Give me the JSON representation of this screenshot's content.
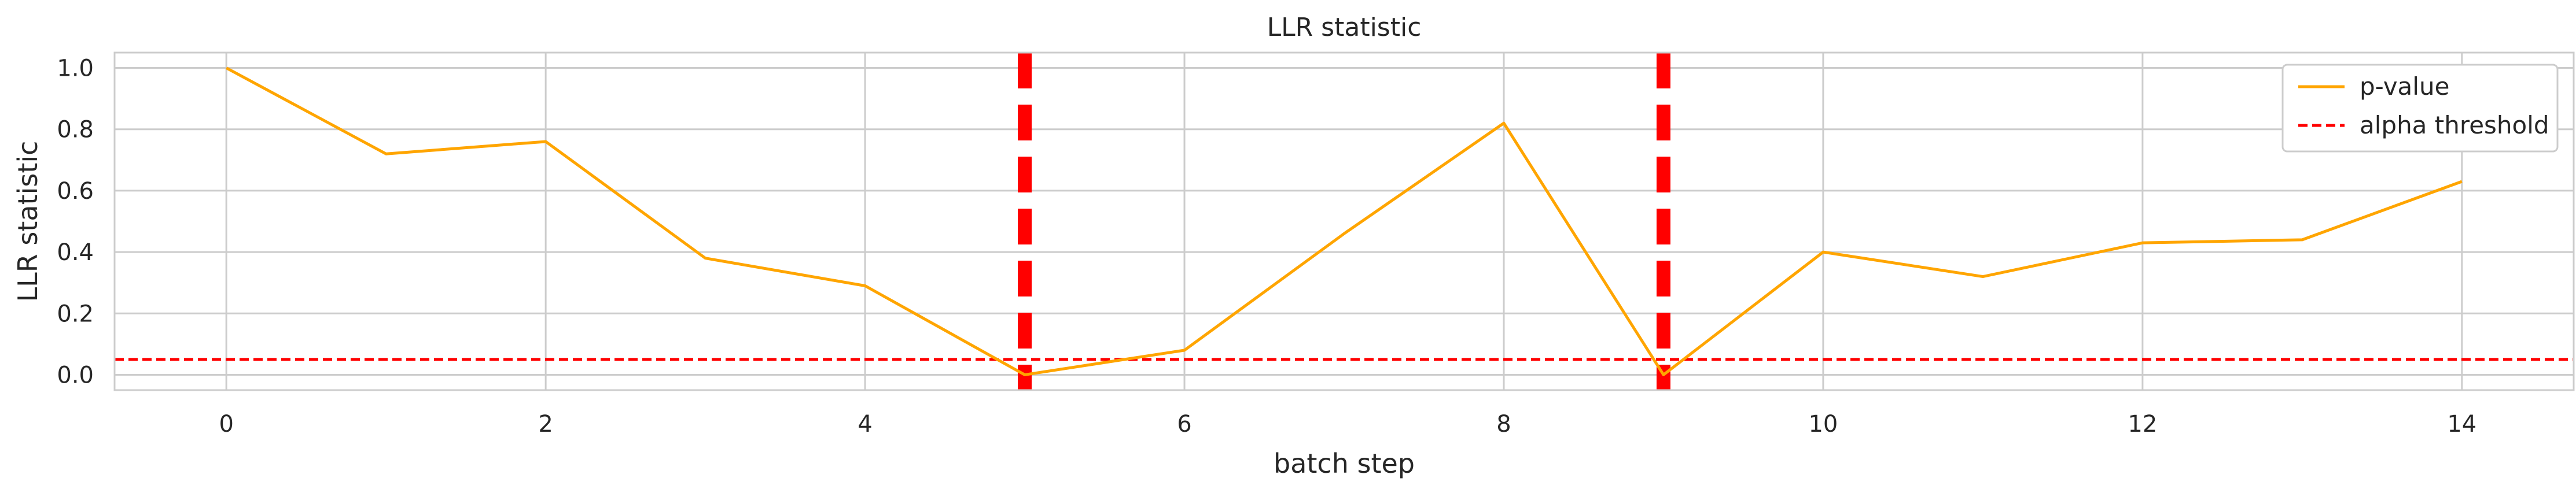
{
  "chart_data": {
    "type": "line",
    "title": "LLR statistic",
    "xlabel": "batch step",
    "ylabel": "LLR statistic",
    "xlim": [
      -0.7,
      14.7
    ],
    "ylim": [
      -0.05,
      1.05
    ],
    "x_ticks": [
      "0",
      "2",
      "4",
      "6",
      "8",
      "10",
      "12",
      "14"
    ],
    "y_ticks": [
      "0.0",
      "0.2",
      "0.4",
      "0.6",
      "0.8",
      "1.0"
    ],
    "grid": true,
    "legend_position": "top-right",
    "series": [
      {
        "name": "p-value",
        "color": "#ffa500",
        "x": [
          0,
          1,
          2,
          3,
          4,
          5,
          6,
          7,
          8,
          9,
          10,
          11,
          12,
          13,
          14
        ],
        "values": [
          1.0,
          0.72,
          0.76,
          0.38,
          0.29,
          0.0,
          0.08,
          0.46,
          0.82,
          0.0,
          0.4,
          0.32,
          0.43,
          0.44,
          0.63
        ]
      }
    ],
    "threshold": {
      "name": "alpha threshold",
      "value": 0.05,
      "color": "#ff0000",
      "style": "dashed"
    },
    "vertical_markers": {
      "x": [
        5,
        9
      ],
      "color": "#ff0000",
      "style": "dashed"
    }
  }
}
